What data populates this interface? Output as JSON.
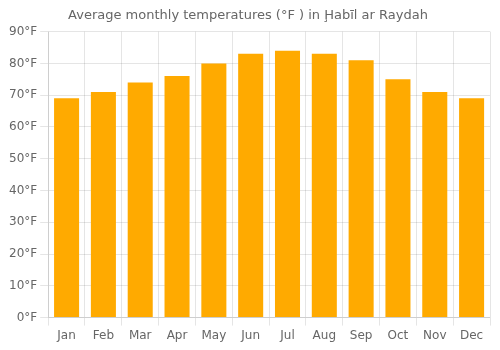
{
  "chart_data": {
    "type": "bar",
    "title": "Average monthly temperatures (°F ) in Ḩabīl ar Raydah",
    "categories": [
      "Jan",
      "Feb",
      "Mar",
      "Apr",
      "May",
      "Jun",
      "Jul",
      "Aug",
      "Sep",
      "Oct",
      "Nov",
      "Dec"
    ],
    "values": [
      69,
      71,
      74,
      76,
      80,
      83,
      84,
      83,
      81,
      75,
      71,
      69
    ],
    "color": "#FFAA00",
    "ylim": [
      0,
      90
    ],
    "yticks": [
      {
        "value": 0,
        "label": "0°F"
      },
      {
        "value": 10,
        "label": "10°F"
      },
      {
        "value": 20,
        "label": "20°F"
      },
      {
        "value": 30,
        "label": "30°F"
      },
      {
        "value": 40,
        "label": "40°F"
      },
      {
        "value": 50,
        "label": "50°F"
      },
      {
        "value": 60,
        "label": "60°F"
      },
      {
        "value": 70,
        "label": "70°F"
      },
      {
        "value": 80,
        "label": "80°F"
      },
      {
        "value": 90,
        "label": "90°F"
      }
    ],
    "grid": true
  }
}
